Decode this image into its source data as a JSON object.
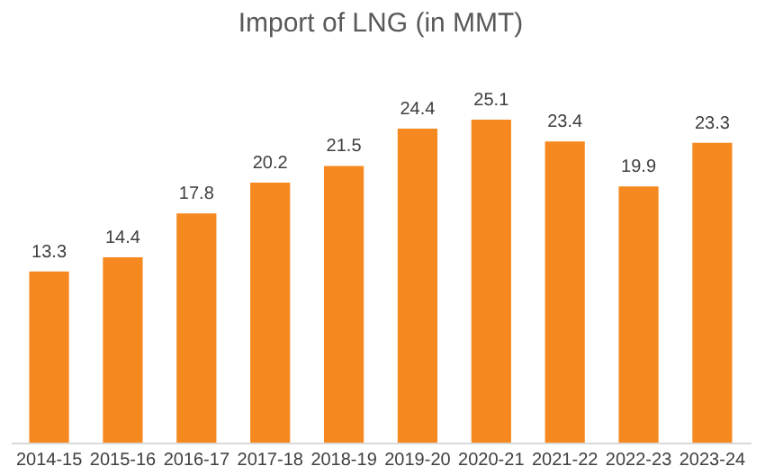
{
  "chart_data": {
    "type": "bar",
    "title": "Import of LNG (in MMT)",
    "categories": [
      "2014-15",
      "2015-16",
      "2016-17",
      "2017-18",
      "2018-19",
      "2019-20",
      "2020-21",
      "2021-22",
      "2022-23",
      "2023-24"
    ],
    "values": [
      13.3,
      14.4,
      17.8,
      20.2,
      21.5,
      24.4,
      25.1,
      23.4,
      19.9,
      23.3
    ],
    "color": "#f5891f",
    "data_labels": true
  }
}
